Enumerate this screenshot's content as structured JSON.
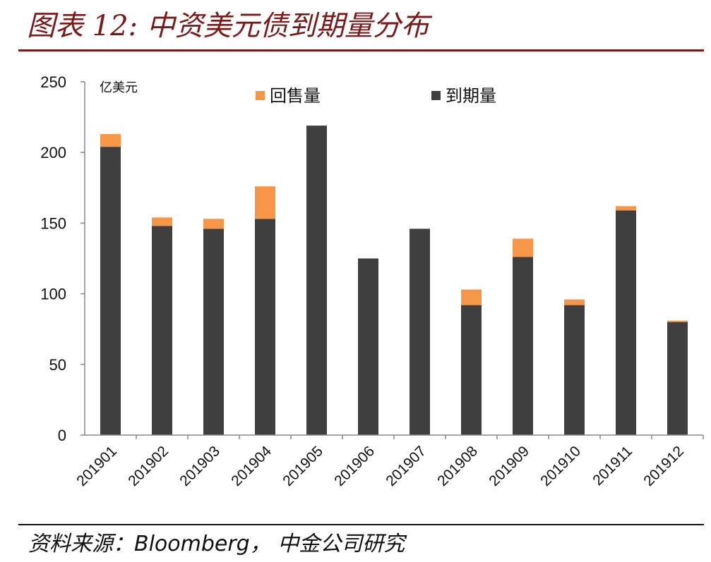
{
  "header": {
    "title": "图表 12:  中资美元债到期量分布"
  },
  "footer": {
    "source": "资料来源：Bloomberg， 中金公司研究"
  },
  "colors": {
    "title": "#7b1a1a",
    "maturity": "#3f3f3f",
    "buyback": "#f79646"
  },
  "chart_data": {
    "type": "bar",
    "stacked": true,
    "categories": [
      "201901",
      "201902",
      "201903",
      "201904",
      "201905",
      "201906",
      "201907",
      "201908",
      "201909",
      "201910",
      "201911",
      "201912"
    ],
    "series": [
      {
        "name": "到期量",
        "color": "#3f3f3f",
        "values": [
          204,
          148,
          146,
          153,
          219,
          125,
          146,
          92,
          126,
          92,
          159,
          80
        ]
      },
      {
        "name": "回售量",
        "color": "#f79646",
        "values": [
          9,
          6,
          7,
          23,
          0,
          0,
          0,
          11,
          13,
          4,
          3,
          1
        ]
      }
    ],
    "unit": "亿美元",
    "ylim": [
      0,
      250
    ],
    "yticks": [
      0,
      50,
      100,
      150,
      200,
      250
    ],
    "grid": false,
    "legend_order": [
      "回售量",
      "到期量"
    ],
    "legend_position": "top"
  }
}
